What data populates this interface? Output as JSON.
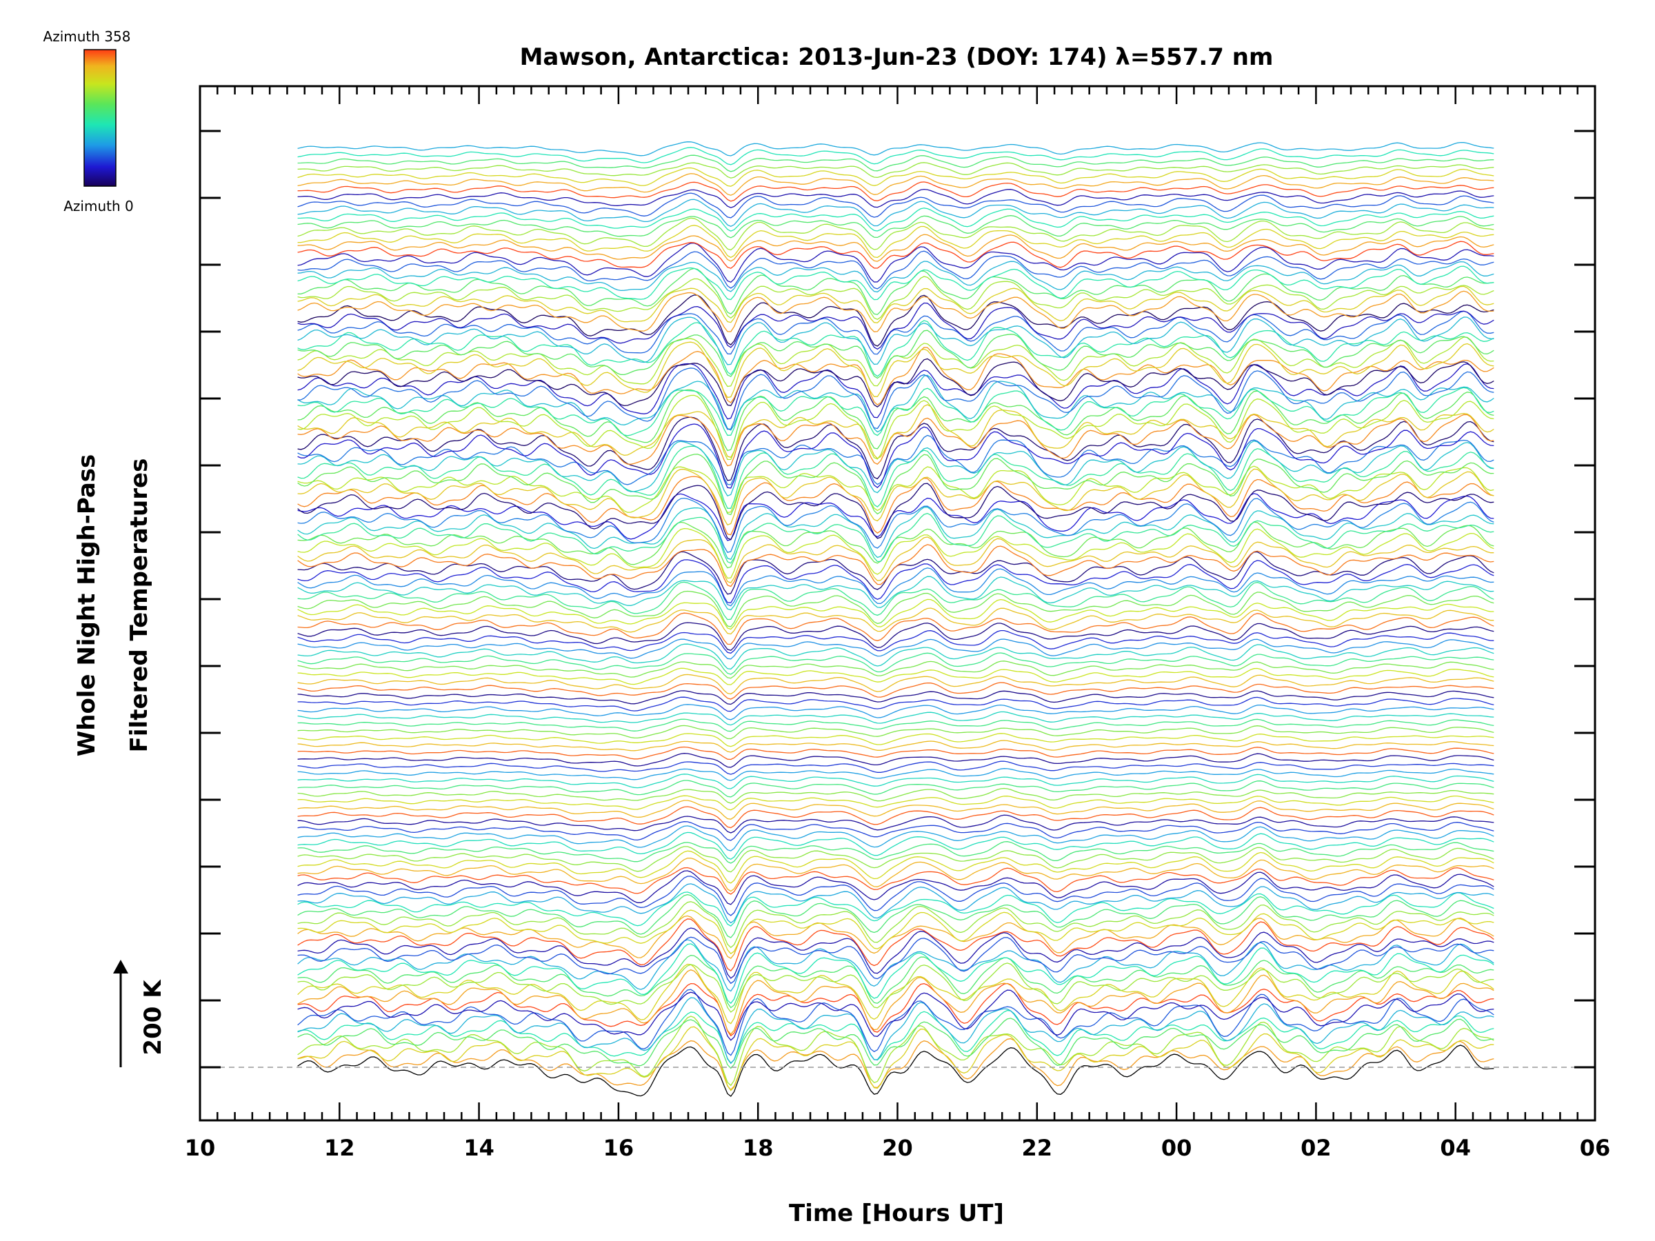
{
  "chart_data": {
    "type": "line",
    "title": "Mawson, Antarctica: 2013-Jun-23 (DOY: 174) λ=557.7 nm",
    "xlabel": "Time [Hours UT]",
    "ylabel_line1": "Whole Night High-Pass",
    "ylabel_line2": "Filtered Temperatures",
    "scale_label": "200 K",
    "x_tick_labels": [
      "10",
      "12",
      "14",
      "16",
      "18",
      "20",
      "22",
      "00",
      "02",
      "04",
      "06"
    ],
    "xlim_hours": [
      10,
      30
    ],
    "data_range_hours": [
      11.4,
      28.55
    ],
    "colorbar": {
      "top_label": "Azimuth 358",
      "bottom_label": "Azimuth 0",
      "colormap": "rainbow",
      "colors": [
        "#18005a",
        "#1e18d2",
        "#1e9be6",
        "#1ee6b4",
        "#5ae65a",
        "#c8e61e",
        "#f0b41e",
        "#ff3c14"
      ]
    },
    "series_count": 132,
    "azimuth_range_deg": [
      0,
      358
    ],
    "grid": false,
    "baseline_dashed": true
  }
}
